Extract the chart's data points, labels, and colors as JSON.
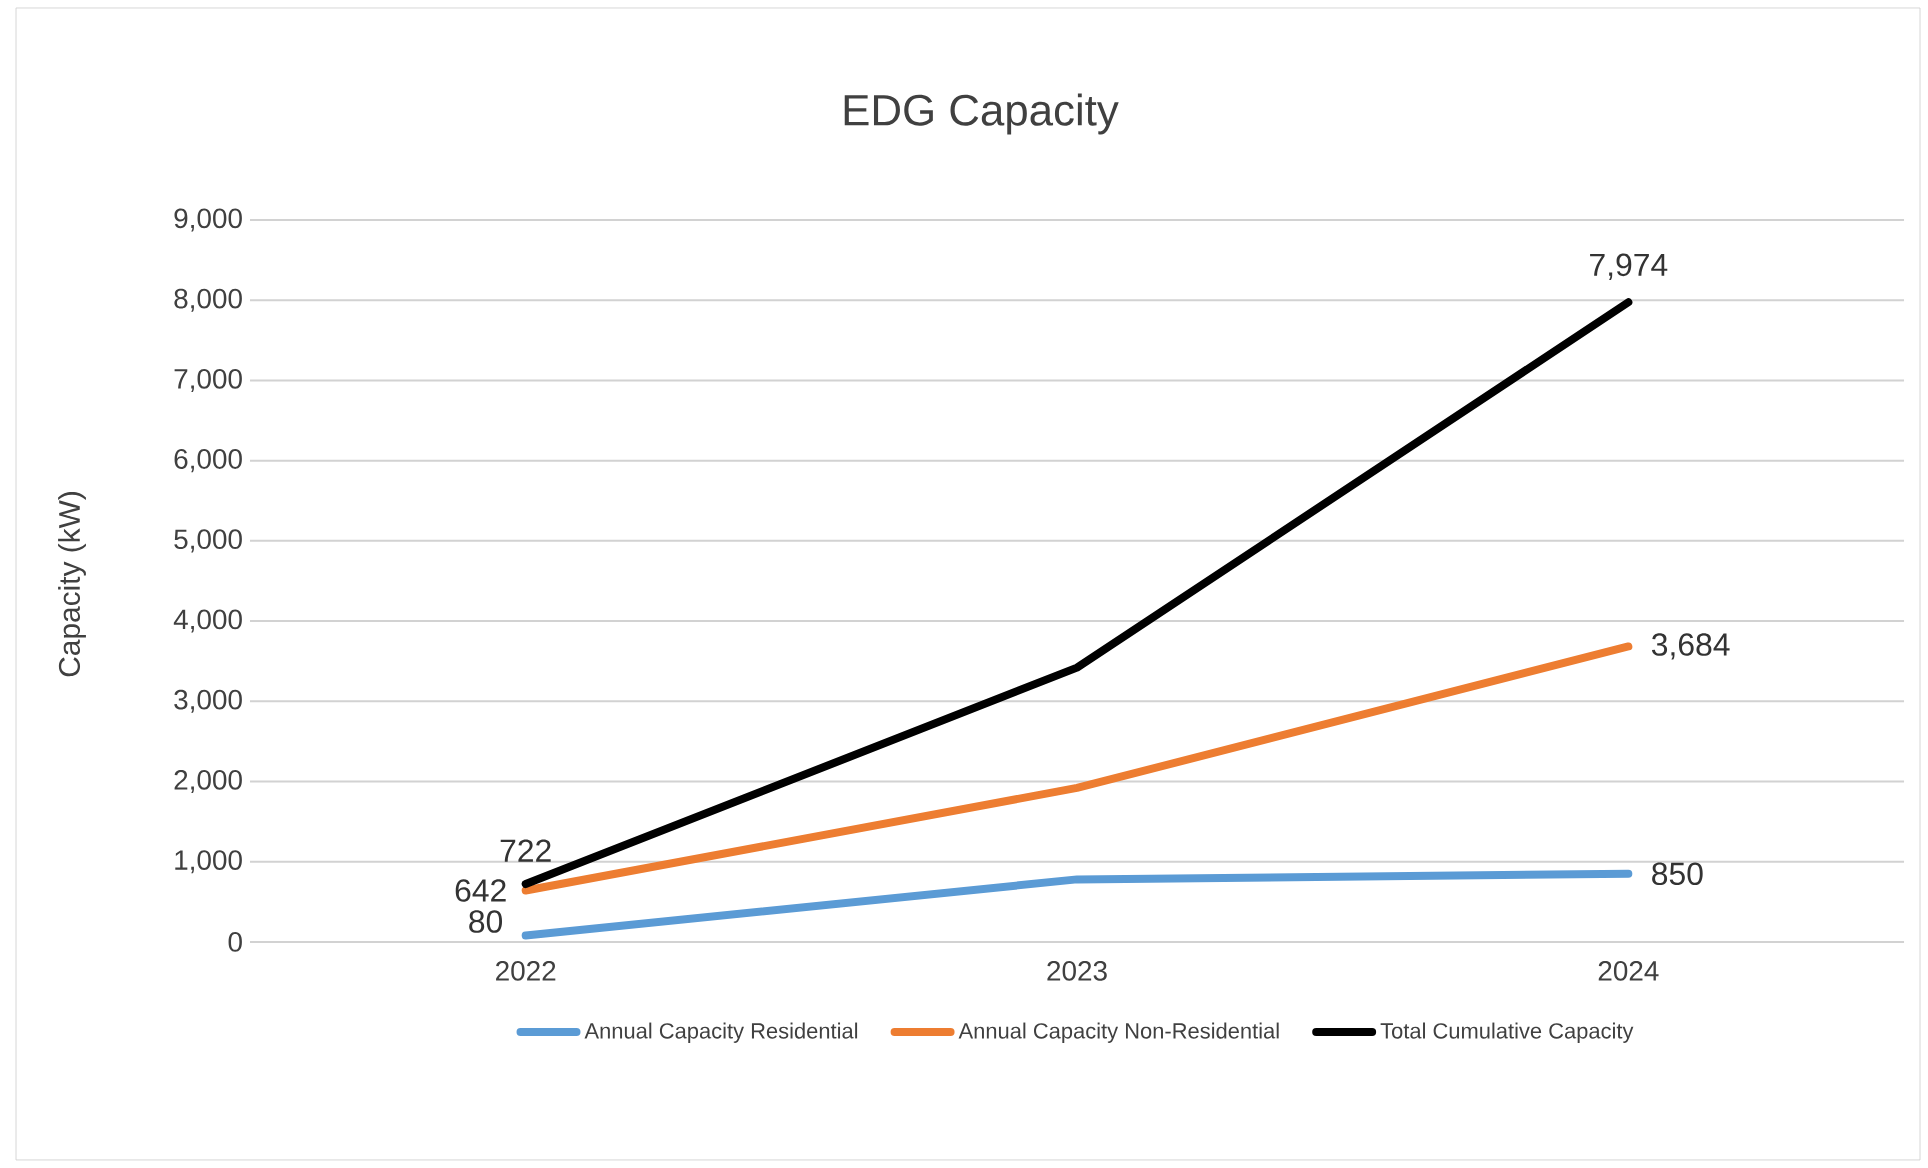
{
  "chart_data": {
    "type": "line",
    "title": "EDG Capacity",
    "ylabel": "Capacity (kW)",
    "categories": [
      "2022",
      "2023",
      "2024"
    ],
    "series": [
      {
        "name": "Annual Capacity Residential",
        "color": "#5b9bd5",
        "values": [
          80,
          780,
          850
        ],
        "value_labels": [
          "80",
          null,
          "850"
        ]
      },
      {
        "name": "Annual Capacity Non-Residential",
        "color": "#ed7d31",
        "values": [
          642,
          1920,
          3684
        ],
        "value_labels": [
          "642",
          null,
          "3,684"
        ]
      },
      {
        "name": "Total Cumulative Capacity",
        "color": "#000000",
        "values": [
          722,
          3420,
          7974
        ],
        "value_labels": [
          "722",
          null,
          "7,974"
        ]
      }
    ],
    "ylim": [
      0,
      9000
    ],
    "yticks": [
      {
        "value": 0,
        "label": "0"
      },
      {
        "value": 1000,
        "label": "1,000"
      },
      {
        "value": 2000,
        "label": "2,000"
      },
      {
        "value": 3000,
        "label": "3,000"
      },
      {
        "value": 4000,
        "label": "4,000"
      },
      {
        "value": 5000,
        "label": "5,000"
      },
      {
        "value": 6000,
        "label": "6,000"
      },
      {
        "value": 7000,
        "label": "7,000"
      },
      {
        "value": 8000,
        "label": "8,000"
      },
      {
        "value": 9000,
        "label": "9,000"
      }
    ],
    "grid": "y",
    "legend": "bottom",
    "marker": "none",
    "line_style": "solid"
  }
}
